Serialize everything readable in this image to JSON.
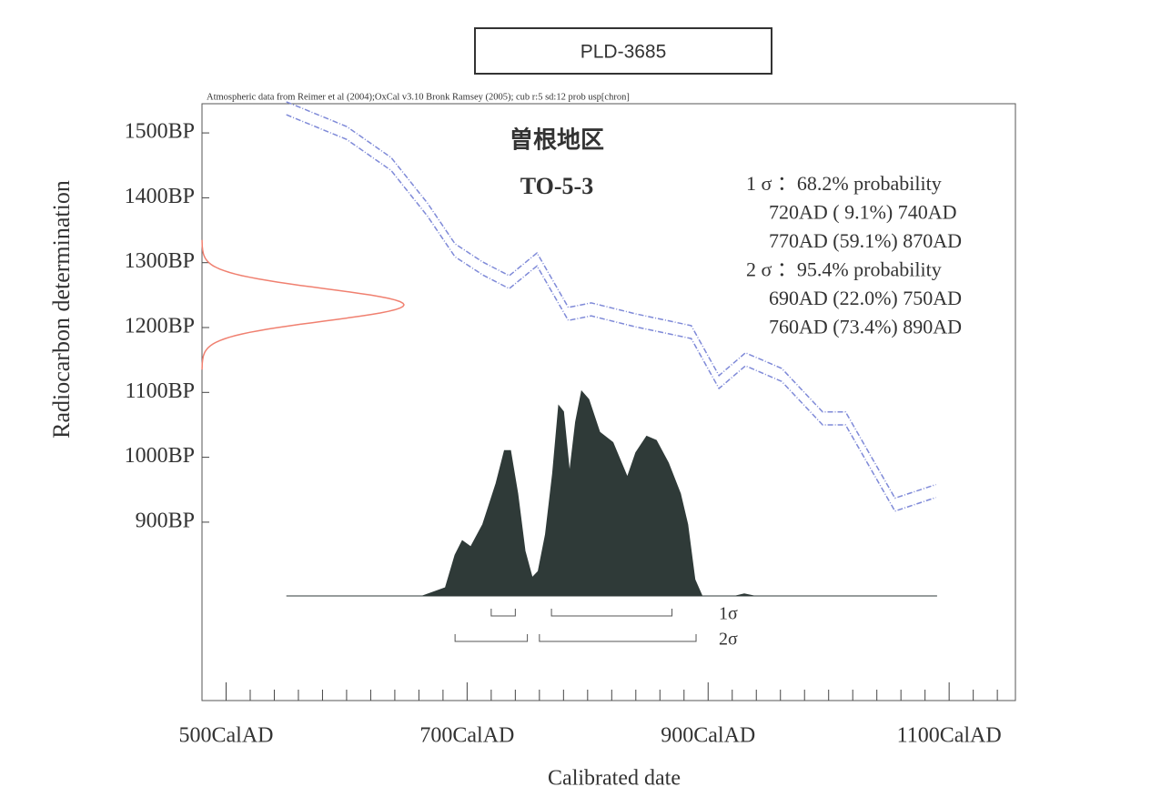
{
  "chart_data": {
    "type": "calibration",
    "title": "PLD-3685",
    "subtitle": "Atmospheric data from Reimer et al (2004);OxCal v3.10 Bronk Ramsey (2005); cub r:5 sd:12 prob usp[chron]",
    "annotations": [
      "曽根地区",
      "TO-5-3"
    ],
    "x_label": "Calibrated date",
    "y_label": "Radiocarbon determination",
    "xlim": [
      480,
      1155
    ],
    "ylim": [
      625,
      1545
    ],
    "xticks": [
      {
        "value": 500,
        "label": "500CalAD"
      },
      {
        "value": 700,
        "label": "700CalAD"
      },
      {
        "value": 900,
        "label": "900CalAD"
      },
      {
        "value": 1100,
        "label": "1100CalAD"
      }
    ],
    "x_minor_ticks": [
      520,
      540,
      560,
      580,
      600,
      620,
      640,
      660,
      680,
      720,
      740,
      760,
      780,
      800,
      820,
      840,
      860,
      880,
      920,
      940,
      960,
      980,
      1000,
      1020,
      1040,
      1060,
      1080,
      1120,
      1140
    ],
    "yticks": [
      {
        "value": 900,
        "label": "900BP"
      },
      {
        "value": 1000,
        "label": "1000BP"
      },
      {
        "value": 1100,
        "label": "1100BP"
      },
      {
        "value": 1200,
        "label": "1200BP"
      },
      {
        "value": 1300,
        "label": "1300BP"
      },
      {
        "value": 1400,
        "label": "1400BP"
      },
      {
        "value": 1500,
        "label": "1500BP"
      }
    ],
    "calibration_curve": {
      "color": "#7f8ad8",
      "x": [
        550,
        600,
        637,
        667,
        690,
        713,
        735,
        758,
        784,
        803,
        840,
        886,
        909,
        931,
        961,
        995,
        1014,
        1055,
        1089
      ],
      "upper": [
        1548,
        1510,
        1462,
        1392,
        1329,
        1301,
        1280,
        1315,
        1231,
        1238,
        1221,
        1203,
        1126,
        1161,
        1137,
        1070,
        1070,
        937,
        958
      ],
      "lower": [
        1528,
        1490,
        1442,
        1372,
        1309,
        1281,
        1260,
        1295,
        1211,
        1218,
        1201,
        1183,
        1106,
        1141,
        1117,
        1050,
        1050,
        917,
        938
      ]
    },
    "measurement": {
      "color": "#f08070",
      "mean": 1235,
      "sd": 25
    },
    "probability": {
      "color": "#2f3a38",
      "x": [
        550,
        663,
        682,
        690,
        696,
        703,
        713,
        724,
        731,
        736,
        742,
        748,
        754,
        759,
        765,
        771,
        776,
        780,
        785,
        790,
        795,
        801,
        810,
        821,
        833,
        840,
        849,
        857,
        867,
        877,
        883,
        889,
        895,
        923,
        930,
        938,
        1090
      ],
      "values": [
        0,
        0,
        0.04,
        0.2,
        0.27,
        0.24,
        0.35,
        0.55,
        0.71,
        0.71,
        0.5,
        0.22,
        0.09,
        0.12,
        0.3,
        0.6,
        0.93,
        0.9,
        0.6,
        0.85,
        1.0,
        0.96,
        0.8,
        0.75,
        0.58,
        0.7,
        0.78,
        0.76,
        0.65,
        0.5,
        0.35,
        0.08,
        0,
        0,
        0.01,
        0,
        0
      ]
    },
    "ranges": [
      {
        "sigma": "1σ",
        "summary": "1 σ ：68.2% probability",
        "intervals": [
          {
            "label": "720AD ( 9.1%) 740AD",
            "from": 720,
            "to": 740
          },
          {
            "label": "770AD (59.1%) 870AD",
            "from": 770,
            "to": 870
          }
        ]
      },
      {
        "sigma": "2σ",
        "summary": "2 σ ：95.4% probability",
        "intervals": [
          {
            "label": "690AD (22.0%) 750AD",
            "from": 690,
            "to": 750
          },
          {
            "label": "760AD (73.4%) 890AD",
            "from": 760,
            "to": 890
          }
        ]
      }
    ]
  }
}
